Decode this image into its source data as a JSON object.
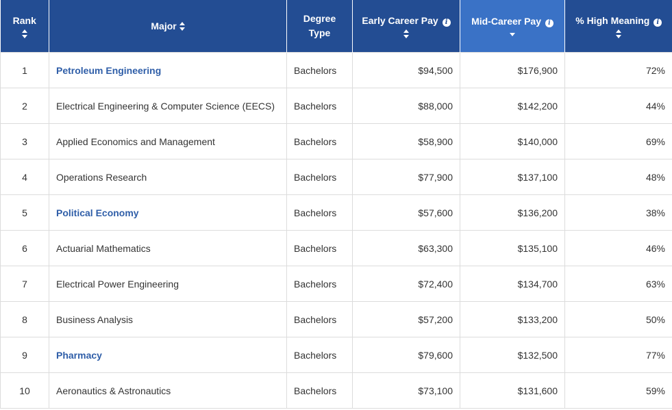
{
  "headers": {
    "rank": "Rank",
    "major": "Major",
    "degree_line1": "Degree",
    "degree_line2": "Type",
    "early": "Early Career Pay",
    "mid": "Mid-Career Pay",
    "meaning": "% High Meaning"
  },
  "colors": {
    "header_bg": "#234d93",
    "active_header_bg": "#3a72c6",
    "link": "#2f5ea8",
    "text": "#333333",
    "border": "#dcdcdc"
  },
  "icons": {
    "sort": "sort-updown-icon",
    "sort_active": "sort-descending-icon",
    "info": "info-icon"
  },
  "rows": [
    {
      "rank": "1",
      "major": "Petroleum Engineering",
      "link": true,
      "degree": "Bachelors",
      "early": "$94,500",
      "mid": "$176,900",
      "meaning": "72%"
    },
    {
      "rank": "2",
      "major": "Electrical Engineering & Computer Science (EECS)",
      "link": false,
      "degree": "Bachelors",
      "early": "$88,000",
      "mid": "$142,200",
      "meaning": "44%"
    },
    {
      "rank": "3",
      "major": "Applied Economics and Management",
      "link": false,
      "degree": "Bachelors",
      "early": "$58,900",
      "mid": "$140,000",
      "meaning": "69%"
    },
    {
      "rank": "4",
      "major": "Operations Research",
      "link": false,
      "degree": "Bachelors",
      "early": "$77,900",
      "mid": "$137,100",
      "meaning": "48%"
    },
    {
      "rank": "5",
      "major": "Political Economy",
      "link": true,
      "degree": "Bachelors",
      "early": "$57,600",
      "mid": "$136,200",
      "meaning": "38%"
    },
    {
      "rank": "6",
      "major": "Actuarial Mathematics",
      "link": false,
      "degree": "Bachelors",
      "early": "$63,300",
      "mid": "$135,100",
      "meaning": "46%"
    },
    {
      "rank": "7",
      "major": "Electrical Power Engineering",
      "link": false,
      "degree": "Bachelors",
      "early": "$72,400",
      "mid": "$134,700",
      "meaning": "63%"
    },
    {
      "rank": "8",
      "major": "Business Analysis",
      "link": false,
      "degree": "Bachelors",
      "early": "$57,200",
      "mid": "$133,200",
      "meaning": "50%"
    },
    {
      "rank": "9",
      "major": "Pharmacy",
      "link": true,
      "degree": "Bachelors",
      "early": "$79,600",
      "mid": "$132,500",
      "meaning": "77%"
    },
    {
      "rank": "10",
      "major": "Aeronautics & Astronautics",
      "link": false,
      "degree": "Bachelors",
      "early": "$73,100",
      "mid": "$131,600",
      "meaning": "59%"
    }
  ]
}
